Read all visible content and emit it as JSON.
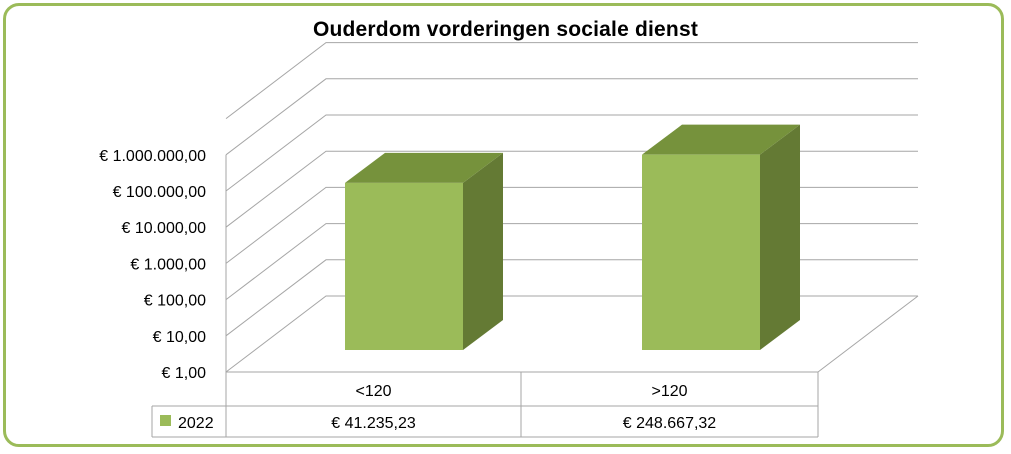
{
  "chart_data": {
    "type": "bar",
    "title": "Ouderdom vorderingen sociale dienst",
    "categories": [
      "<120",
      ">120"
    ],
    "series": [
      {
        "name": "2022",
        "values": [
          41235.23,
          248667.32
        ],
        "value_labels": [
          "€ 41.235,23",
          "€ 248.667,32"
        ]
      }
    ],
    "y_scale": "log",
    "ylim": [
      1,
      10000000
    ],
    "y_tick_values": [
      1,
      10,
      100,
      1000,
      10000,
      100000,
      1000000
    ],
    "y_tick_labels": [
      "€ 1,00",
      "€ 10,00",
      "€ 100,00",
      "€ 1.000,00",
      "€ 10.000,00",
      "€ 100.000,00",
      "€ 1.000.000,00"
    ],
    "grid": true,
    "legend": "data-table",
    "three_d": true,
    "colors": {
      "front": "#9bbb59",
      "top": "#76923c",
      "side": "#647a34",
      "border": "#9bbb59",
      "grid": "#a6a6a6"
    }
  }
}
